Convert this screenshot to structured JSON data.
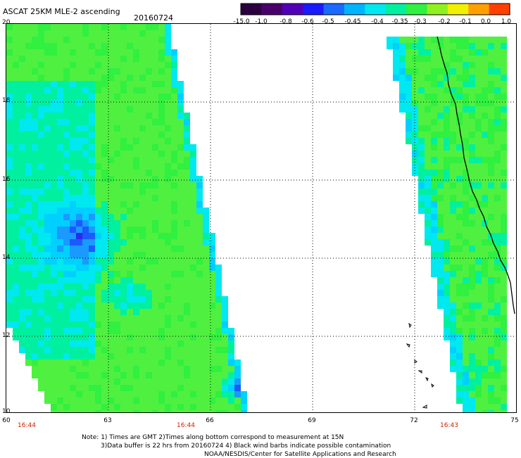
{
  "header": {
    "title": "ASCAT 25KM MLE-2 ascending",
    "date": "20160724"
  },
  "colorbar": {
    "labels": [
      "-15.0",
      "-1.0",
      "-0.8",
      "-0.6",
      "-0.5",
      "-0.45",
      "-0.4",
      "-0.35",
      "-0.3",
      "-0.2",
      "-0.1",
      "0.0",
      "1.0"
    ],
    "colors": [
      "#2a0040",
      "#4a006a",
      "#5200b8",
      "#1a1aff",
      "#1a6aff",
      "#00b4ff",
      "#00e8f0",
      "#00f0a0",
      "#30f040",
      "#90f020",
      "#f0f000",
      "#ffa000",
      "#ff4000"
    ]
  },
  "map": {
    "y_ticks": [
      "20",
      "18",
      "16",
      "14",
      "12",
      "10"
    ],
    "x_ticks": [
      "60",
      "63",
      "66",
      "69",
      "72",
      "75"
    ],
    "pass_times": [
      "16:44",
      "16:44",
      "16:43"
    ]
  },
  "notes": {
    "line1": "Note: 1) Times are GMT 2)Times along bottom correspond to measurement at 15N",
    "line2": "3)Data buffer is 22 hrs from 20160724 4) Black wind barbs indicate possible contamination",
    "line3": "NOAA/NESDIS/Center for Satellite Applications and Research"
  }
}
